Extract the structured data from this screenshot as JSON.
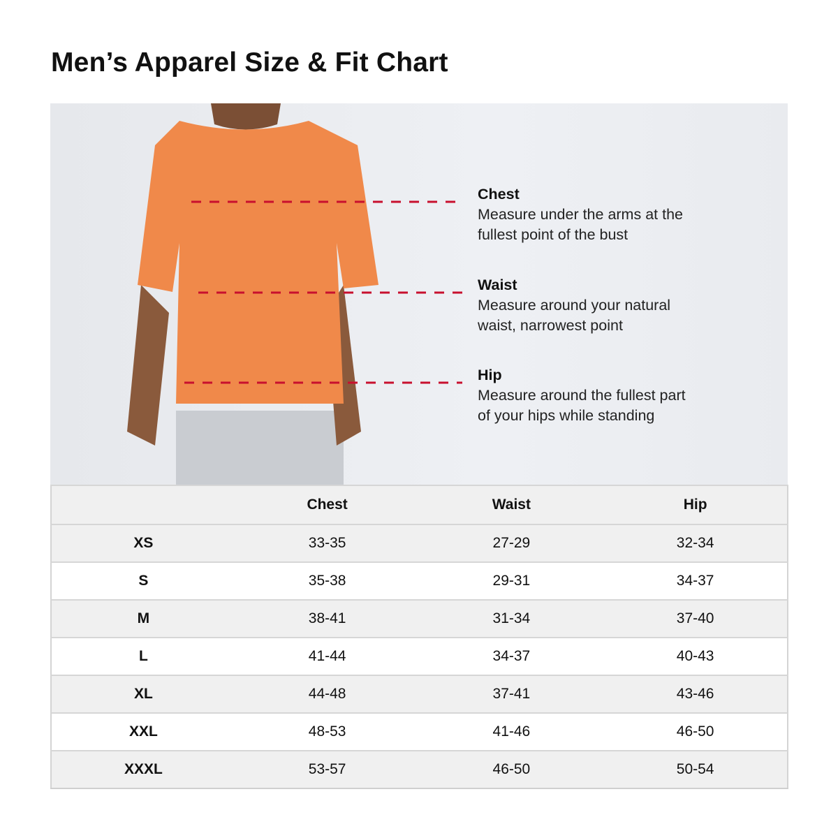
{
  "title": "Men’s Apparel Size & Fit Chart",
  "colors": {
    "dash_line": "#c8102e",
    "shirt": "#f0894a",
    "shorts": "#c9ccd1"
  },
  "callouts": [
    {
      "heading": "Chest",
      "line1": "Measure under the arms at the",
      "line2": "fullest point of the bust"
    },
    {
      "heading": "Waist",
      "line1": "Measure around your natural",
      "line2": "waist, narrowest point"
    },
    {
      "heading": "Hip",
      "line1": "Measure around the fullest part",
      "line2": "of your hips while standing"
    }
  ],
  "table": {
    "headers": [
      "",
      "Chest",
      "Waist",
      "Hip"
    ],
    "rows": [
      [
        "XS",
        "33-35",
        "27-29",
        "32-34"
      ],
      [
        "S",
        "35-38",
        "29-31",
        "34-37"
      ],
      [
        "M",
        "38-41",
        "31-34",
        "37-40"
      ],
      [
        "L",
        "41-44",
        "34-37",
        "40-43"
      ],
      [
        "XL",
        "44-48",
        "37-41",
        "43-46"
      ],
      [
        "XXL",
        "48-53",
        "41-46",
        "46-50"
      ],
      [
        "XXXL",
        "53-57",
        "46-50",
        "50-54"
      ]
    ]
  }
}
